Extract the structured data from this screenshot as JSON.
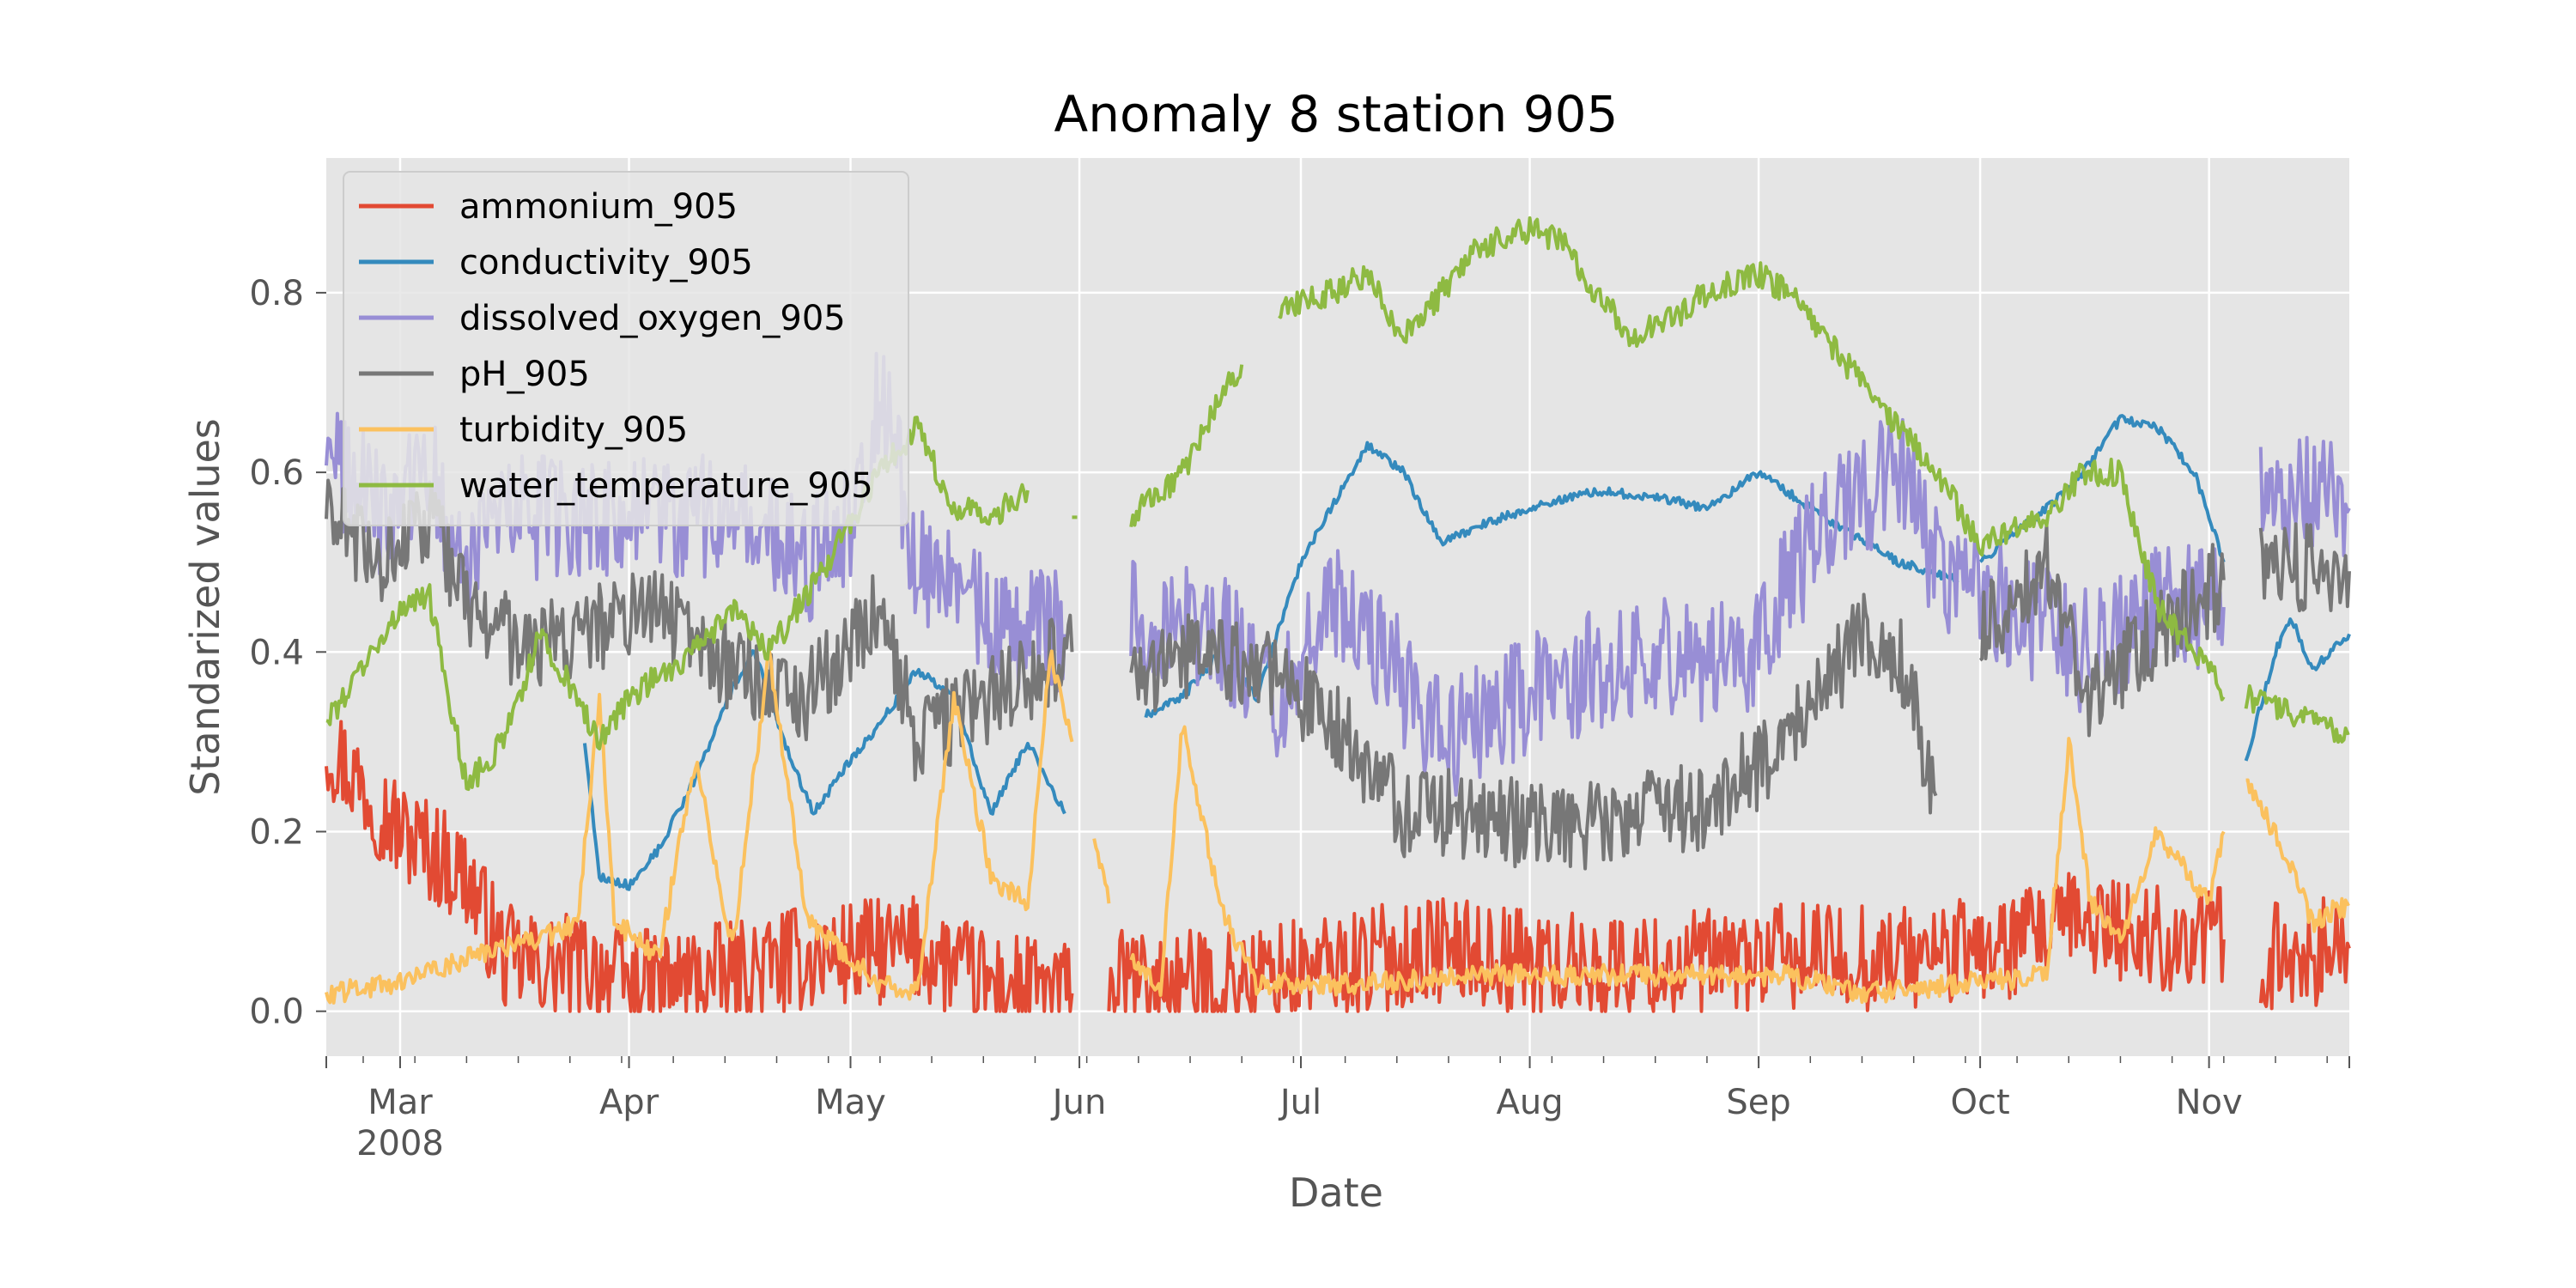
{
  "chart_data": {
    "type": "line",
    "title": "Anomaly 8 station 905",
    "xlabel": "Date",
    "ylabel": "Standarized values",
    "x_range": [
      "2008-02-20",
      "2008-11-20"
    ],
    "ylim": [
      -0.05,
      0.95
    ],
    "y_ticks": [
      0.0,
      0.2,
      0.4,
      0.6,
      0.8
    ],
    "y_tick_labels": [
      "0.0",
      "0.2",
      "0.4",
      "0.6",
      "0.8"
    ],
    "x_ticks": [
      {
        "date": "2008-03-01",
        "label": "Mar",
        "sublabel": "2008"
      },
      {
        "date": "2008-04-01",
        "label": "Apr",
        "sublabel": ""
      },
      {
        "date": "2008-05-01",
        "label": "May",
        "sublabel": ""
      },
      {
        "date": "2008-06-01",
        "label": "Jun",
        "sublabel": ""
      },
      {
        "date": "2008-07-01",
        "label": "Jul",
        "sublabel": ""
      },
      {
        "date": "2008-08-01",
        "label": "Aug",
        "sublabel": ""
      },
      {
        "date": "2008-09-01",
        "label": "Sep",
        "sublabel": ""
      },
      {
        "date": "2008-10-01",
        "label": "Oct",
        "sublabel": ""
      },
      {
        "date": "2008-11-01",
        "label": "Nov",
        "sublabel": ""
      }
    ],
    "grid": true,
    "legend_position": "top-left",
    "series": [
      {
        "name": "ammonium_905",
        "color": "#E24A33",
        "noise": 0.06,
        "points": [
          [
            "2008-02-20",
            0.3
          ],
          [
            "2008-02-25",
            0.25
          ],
          [
            "2008-03-01",
            0.2
          ],
          [
            "2008-03-05",
            0.18
          ],
          [
            "2008-03-10",
            0.15
          ],
          [
            "2008-03-15",
            0.06
          ],
          [
            "2008-03-20",
            0.05
          ],
          [
            "2008-03-28",
            0.05
          ],
          [
            "2008-04-01",
            0.03
          ],
          [
            "2008-04-15",
            0.04
          ],
          [
            "2008-04-25",
            0.06
          ],
          [
            "2008-05-10",
            0.07
          ],
          [
            "2008-05-20",
            0.03
          ],
          [
            "2008-05-31",
            0.02
          ],
          null,
          [
            "2008-06-05",
            0.03
          ],
          [
            "2008-06-20",
            0.03
          ],
          [
            "2008-07-05",
            0.05
          ],
          [
            "2008-07-20",
            0.07
          ],
          [
            "2008-08-05",
            0.05
          ],
          [
            "2008-08-20",
            0.05
          ],
          [
            "2008-09-05",
            0.06
          ],
          [
            "2008-09-20",
            0.06
          ],
          [
            "2008-10-05",
            0.07
          ],
          [
            "2008-10-15",
            0.1
          ],
          [
            "2008-10-25",
            0.08
          ],
          [
            "2008-11-03",
            0.08
          ],
          null,
          [
            "2008-11-08",
            0.06
          ],
          [
            "2008-11-20",
            0.07
          ]
        ]
      },
      {
        "name": "conductivity_905",
        "color": "#348ABD",
        "noise": 0.005,
        "points": [
          [
            "2008-03-26",
            0.3
          ],
          [
            "2008-03-28",
            0.15
          ],
          [
            "2008-04-01",
            0.14
          ],
          [
            "2008-04-05",
            0.18
          ],
          [
            "2008-04-10",
            0.26
          ],
          [
            "2008-04-15",
            0.36
          ],
          [
            "2008-04-18",
            0.4
          ],
          [
            "2008-04-22",
            0.3
          ],
          [
            "2008-04-26",
            0.22
          ],
          [
            "2008-05-01",
            0.28
          ],
          [
            "2008-05-05",
            0.32
          ],
          [
            "2008-05-10",
            0.38
          ],
          [
            "2008-05-15",
            0.35
          ],
          [
            "2008-05-20",
            0.22
          ],
          [
            "2008-05-25",
            0.3
          ],
          [
            "2008-05-30",
            0.22
          ],
          null,
          [
            "2008-06-10",
            0.33
          ],
          [
            "2008-06-15",
            0.35
          ],
          [
            "2008-06-20",
            0.4
          ],
          [
            "2008-06-25",
            0.35
          ],
          [
            "2008-07-01",
            0.5
          ],
          [
            "2008-07-05",
            0.56
          ],
          [
            "2008-07-10",
            0.63
          ],
          [
            "2008-07-15",
            0.6
          ],
          [
            "2008-07-20",
            0.52
          ],
          [
            "2008-07-25",
            0.54
          ],
          [
            "2008-08-01",
            0.56
          ],
          [
            "2008-08-10",
            0.58
          ],
          [
            "2008-08-20",
            0.57
          ],
          [
            "2008-08-25",
            0.56
          ],
          [
            "2008-09-01",
            0.6
          ],
          [
            "2008-09-10",
            0.55
          ],
          [
            "2008-09-20",
            0.5
          ],
          [
            "2008-09-28",
            0.48
          ],
          null,
          [
            "2008-10-01",
            0.5
          ],
          [
            "2008-10-10",
            0.56
          ],
          [
            "2008-10-15",
            0.6
          ],
          [
            "2008-10-20",
            0.66
          ],
          [
            "2008-10-25",
            0.65
          ],
          [
            "2008-10-30",
            0.6
          ],
          [
            "2008-11-03",
            0.5
          ],
          null,
          [
            "2008-11-06",
            0.28
          ],
          [
            "2008-11-10",
            0.4
          ],
          [
            "2008-11-12",
            0.44
          ],
          [
            "2008-11-15",
            0.38
          ],
          [
            "2008-11-20",
            0.42
          ]
        ]
      },
      {
        "name": "dissolved_oxygen_905",
        "color": "#988ED5",
        "noise": 0.07,
        "points": [
          [
            "2008-02-20",
            0.62
          ],
          [
            "2008-02-28",
            0.55
          ],
          [
            "2008-03-05",
            0.6
          ],
          [
            "2008-03-10",
            0.5
          ],
          [
            "2008-03-15",
            0.55
          ],
          [
            "2008-03-25",
            0.55
          ],
          [
            "2008-04-05",
            0.55
          ],
          [
            "2008-04-15",
            0.55
          ],
          [
            "2008-04-25",
            0.5
          ],
          [
            "2008-05-01",
            0.55
          ],
          [
            "2008-05-05",
            0.7
          ],
          [
            "2008-05-10",
            0.5
          ],
          [
            "2008-05-20",
            0.43
          ],
          [
            "2008-05-30",
            0.42
          ],
          null,
          [
            "2008-06-08",
            0.45
          ],
          [
            "2008-06-20",
            0.42
          ],
          [
            "2008-06-28",
            0.35
          ],
          [
            "2008-07-05",
            0.45
          ],
          [
            "2008-07-12",
            0.4
          ],
          [
            "2008-07-20",
            0.3
          ],
          [
            "2008-08-01",
            0.35
          ],
          [
            "2008-08-10",
            0.38
          ],
          [
            "2008-08-20",
            0.4
          ],
          [
            "2008-08-30",
            0.38
          ],
          [
            "2008-09-10",
            0.55
          ],
          [
            "2008-09-20",
            0.6
          ],
          [
            "2008-09-25",
            0.5
          ],
          [
            "2008-10-05",
            0.45
          ],
          [
            "2008-10-15",
            0.4
          ],
          [
            "2008-10-25",
            0.45
          ],
          [
            "2008-11-03",
            0.45
          ],
          null,
          [
            "2008-11-08",
            0.58
          ],
          [
            "2008-11-20",
            0.56
          ]
        ]
      },
      {
        "name": "pH_905",
        "color": "#777777",
        "noise": 0.05,
        "points": [
          [
            "2008-02-20",
            0.55
          ],
          [
            "2008-02-28",
            0.5
          ],
          [
            "2008-03-05",
            0.55
          ],
          [
            "2008-03-10",
            0.45
          ],
          [
            "2008-03-18",
            0.4
          ],
          [
            "2008-03-25",
            0.42
          ],
          [
            "2008-04-05",
            0.45
          ],
          [
            "2008-04-15",
            0.38
          ],
          [
            "2008-04-25",
            0.35
          ],
          [
            "2008-05-05",
            0.45
          ],
          [
            "2008-05-10",
            0.3
          ],
          [
            "2008-05-20",
            0.35
          ],
          [
            "2008-05-31",
            0.4
          ],
          null,
          [
            "2008-06-08",
            0.36
          ],
          [
            "2008-06-15",
            0.4
          ],
          [
            "2008-06-25",
            0.38
          ],
          [
            "2008-07-05",
            0.33
          ],
          [
            "2008-07-15",
            0.22
          ],
          [
            "2008-07-25",
            0.22
          ],
          [
            "2008-08-05",
            0.2
          ],
          [
            "2008-08-15",
            0.22
          ],
          [
            "2008-08-25",
            0.23
          ],
          [
            "2008-09-05",
            0.3
          ],
          [
            "2008-09-15",
            0.42
          ],
          [
            "2008-09-20",
            0.4
          ],
          [
            "2008-09-25",
            0.24
          ],
          null,
          [
            "2008-10-01",
            0.42
          ],
          [
            "2008-10-10",
            0.5
          ],
          [
            "2008-10-15",
            0.35
          ],
          [
            "2008-10-25",
            0.42
          ],
          [
            "2008-11-03",
            0.48
          ],
          null,
          [
            "2008-11-08",
            0.5
          ],
          [
            "2008-11-20",
            0.49
          ]
        ]
      },
      {
        "name": "turbidity_905",
        "color": "#FBC15E",
        "noise": 0.012,
        "points": [
          [
            "2008-02-20",
            0.02
          ],
          [
            "2008-03-01",
            0.03
          ],
          [
            "2008-03-10",
            0.06
          ],
          [
            "2008-03-20",
            0.08
          ],
          [
            "2008-03-25",
            0.1
          ],
          [
            "2008-03-28",
            0.35
          ],
          [
            "2008-03-30",
            0.1
          ],
          [
            "2008-04-05",
            0.06
          ],
          [
            "2008-04-10",
            0.28
          ],
          [
            "2008-04-15",
            0.07
          ],
          [
            "2008-04-20",
            0.4
          ],
          [
            "2008-04-25",
            0.1
          ],
          [
            "2008-05-01",
            0.06
          ],
          [
            "2008-05-05",
            0.03
          ],
          [
            "2008-05-10",
            0.02
          ],
          [
            "2008-05-15",
            0.35
          ],
          [
            "2008-05-20",
            0.15
          ],
          [
            "2008-05-25",
            0.12
          ],
          [
            "2008-05-28",
            0.4
          ],
          [
            "2008-05-31",
            0.3
          ],
          null,
          [
            "2008-06-03",
            0.2
          ],
          [
            "2008-06-05",
            0.12
          ],
          null,
          [
            "2008-06-08",
            0.06
          ],
          [
            "2008-06-12",
            0.03
          ],
          [
            "2008-06-15",
            0.32
          ],
          [
            "2008-06-20",
            0.12
          ],
          [
            "2008-06-25",
            0.03
          ],
          [
            "2008-07-10",
            0.03
          ],
          [
            "2008-07-25",
            0.04
          ],
          [
            "2008-08-10",
            0.04
          ],
          [
            "2008-08-25",
            0.04
          ],
          [
            "2008-09-05",
            0.04
          ],
          [
            "2008-09-15",
            0.02
          ],
          [
            "2008-09-28",
            0.03
          ],
          [
            "2008-10-10",
            0.04
          ],
          [
            "2008-10-13",
            0.3
          ],
          [
            "2008-10-16",
            0.12
          ],
          [
            "2008-10-20",
            0.08
          ],
          [
            "2008-10-25",
            0.2
          ],
          [
            "2008-11-01",
            0.12
          ],
          [
            "2008-11-03",
            0.2
          ],
          null,
          [
            "2008-11-06",
            0.25
          ],
          [
            "2008-11-10",
            0.2
          ],
          [
            "2008-11-15",
            0.1
          ],
          [
            "2008-11-20",
            0.12
          ]
        ]
      },
      {
        "name": "water_temperature_905",
        "color": "#8EBA42",
        "noise": 0.015,
        "points": [
          [
            "2008-02-20",
            0.32
          ],
          [
            "2008-03-01",
            0.45
          ],
          [
            "2008-03-05",
            0.46
          ],
          [
            "2008-03-10",
            0.25
          ],
          [
            "2008-03-15",
            0.3
          ],
          [
            "2008-03-20",
            0.42
          ],
          [
            "2008-03-25",
            0.35
          ],
          [
            "2008-03-28",
            0.3
          ],
          [
            "2008-04-01",
            0.35
          ],
          [
            "2008-04-10",
            0.4
          ],
          [
            "2008-04-15",
            0.45
          ],
          [
            "2008-04-20",
            0.4
          ],
          [
            "2008-04-28",
            0.5
          ],
          [
            "2008-05-05",
            0.6
          ],
          [
            "2008-05-10",
            0.65
          ],
          [
            "2008-05-15",
            0.56
          ],
          [
            "2008-05-20",
            0.55
          ],
          [
            "2008-05-25",
            0.58
          ],
          null,
          [
            "2008-05-31",
            0.55
          ],
          null,
          [
            "2008-06-08",
            0.55
          ],
          [
            "2008-06-15",
            0.6
          ],
          [
            "2008-06-20",
            0.68
          ],
          [
            "2008-06-23",
            0.72
          ],
          null,
          [
            "2008-06-28",
            0.78
          ],
          [
            "2008-07-05",
            0.8
          ],
          [
            "2008-07-10",
            0.82
          ],
          [
            "2008-07-15",
            0.75
          ],
          [
            "2008-07-20",
            0.8
          ],
          [
            "2008-07-25",
            0.85
          ],
          [
            "2008-08-01",
            0.87
          ],
          [
            "2008-08-05",
            0.86
          ],
          [
            "2008-08-10",
            0.8
          ],
          [
            "2008-08-15",
            0.75
          ],
          [
            "2008-08-20",
            0.77
          ],
          [
            "2008-08-25",
            0.8
          ],
          [
            "2008-09-01",
            0.82
          ],
          [
            "2008-09-05",
            0.8
          ],
          [
            "2008-09-10",
            0.75
          ],
          [
            "2008-09-15",
            0.7
          ],
          [
            "2008-09-20",
            0.65
          ],
          [
            "2008-09-25",
            0.6
          ],
          [
            "2008-10-01",
            0.52
          ],
          [
            "2008-10-10",
            0.55
          ],
          [
            "2008-10-15",
            0.6
          ],
          [
            "2008-10-20",
            0.6
          ],
          [
            "2008-10-25",
            0.45
          ],
          [
            "2008-11-01",
            0.38
          ],
          [
            "2008-11-03",
            0.35
          ],
          null,
          [
            "2008-11-06",
            0.35
          ],
          [
            "2008-11-12",
            0.33
          ],
          [
            "2008-11-20",
            0.31
          ]
        ]
      }
    ]
  }
}
